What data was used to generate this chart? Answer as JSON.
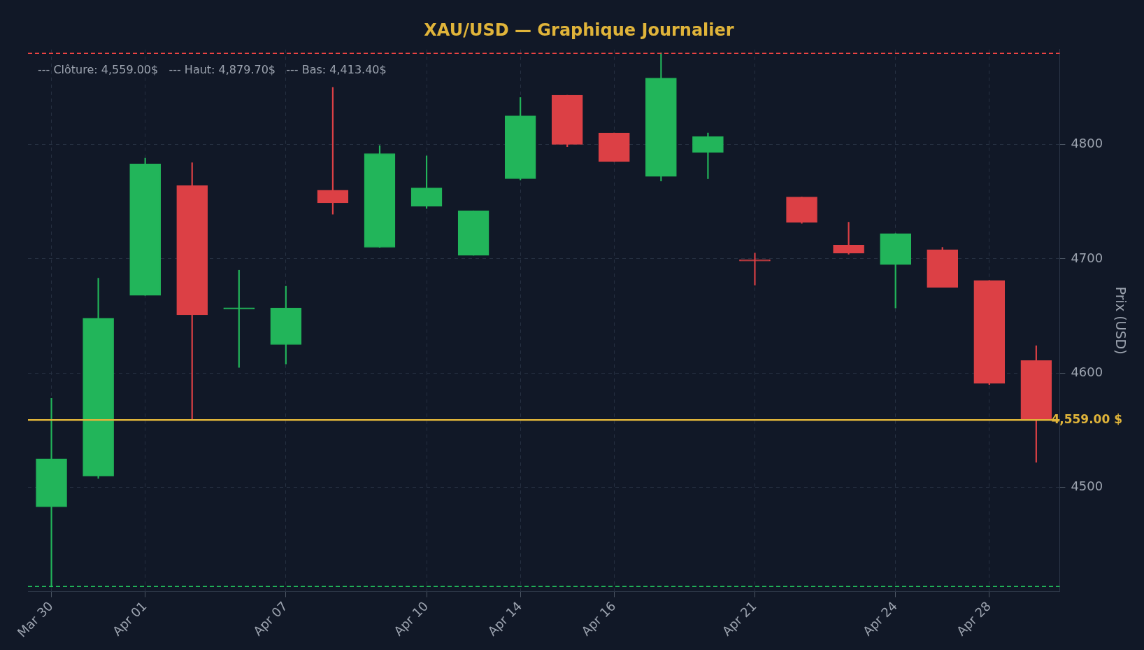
{
  "chart_data": {
    "type": "candlestick",
    "title": "XAU/USD — Graphique Journalier",
    "ylabel": "Prix (USD)",
    "categories": [
      "Mar 30",
      null,
      "Apr 01",
      null,
      null,
      "Apr 07",
      null,
      null,
      "Apr 10",
      null,
      "Apr 14",
      null,
      "Apr 16",
      null,
      null,
      "Apr 21",
      null,
      null,
      "Apr 24",
      null,
      "Apr 28",
      null
    ],
    "ohlc": [
      [
        4483,
        4578,
        4413,
        4525
      ],
      [
        4510,
        4683,
        4508,
        4648
      ],
      [
        4668,
        4788,
        4668,
        4783
      ],
      [
        4764,
        4784,
        4559,
        4651
      ],
      [
        4656,
        4690,
        4605,
        4657
      ],
      [
        4625,
        4676,
        4608,
        4657
      ],
      [
        4760,
        4850,
        4739,
        4749
      ],
      [
        4710,
        4799,
        4710,
        4792
      ],
      [
        4746,
        4790,
        4744,
        4762
      ],
      [
        4703,
        4742,
        4703,
        4742
      ],
      [
        4770,
        4841,
        4769,
        4825
      ],
      [
        4843,
        4843,
        4798,
        4800
      ],
      [
        4810,
        4810,
        4785,
        4785
      ],
      [
        4772,
        4880,
        4768,
        4858
      ],
      [
        4793,
        4810,
        4770,
        4807
      ],
      [
        4699,
        4705,
        4677,
        4698
      ],
      [
        4754,
        4754,
        4731,
        4732
      ],
      [
        4712,
        4732,
        4704,
        4705
      ],
      [
        4695,
        4722,
        4657,
        4722
      ],
      [
        4708,
        4710,
        4675,
        4675
      ],
      [
        4681,
        4681,
        4590,
        4591
      ],
      [
        4611,
        4624,
        4522,
        4559
      ]
    ],
    "colors": [
      "#22b55a",
      "#22b55a",
      "#22b55a",
      "#dc4045",
      "#22b55a",
      "#22b55a",
      "#dc4045",
      "#22b55a",
      "#22b55a",
      "#22b55a",
      "#22b55a",
      "#dc4045",
      "#dc4045",
      "#22b55a",
      "#22b55a",
      "#dc4045",
      "#dc4045",
      "#dc4045",
      "#22b55a",
      "#dc4045",
      "#dc4045",
      "#dc4045"
    ],
    "ylim": [
      4409,
      4883
    ],
    "yticks": [
      4500,
      4600,
      4700,
      4800
    ],
    "grid": true,
    "ref_lines": [
      {
        "axis": "y",
        "value": 4879.7,
        "color": "#ef4444",
        "line_style": "dashed"
      },
      {
        "axis": "y",
        "value": 4413.4,
        "color": "#22c55e",
        "line_style": "dashed"
      },
      {
        "axis": "y",
        "value": 4559,
        "label": "4,559.00 $",
        "color": "#e0b43a",
        "line_style": "solid"
      }
    ],
    "annotations": [
      "--- Clôture: 4,559.00$   --- Haut: 4,879.70$   --- Bas: 4,413.40$"
    ]
  }
}
